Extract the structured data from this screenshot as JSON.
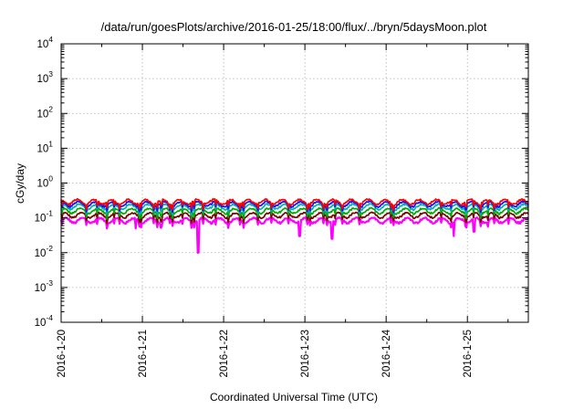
{
  "chart_data": {
    "type": "line",
    "title": "/data/run/goesPlots/archive/2016-01-25/18:00/flux/../bryn/5daysMoon.plot",
    "xlabel": "Coordinated Universal Time (UTC)",
    "ylabel": "cGy/day",
    "xlim": [
      "2016-01-20T00:00",
      "2016-01-25T18:00"
    ],
    "x_ticks": [
      "2016-1-20",
      "2016-1-21",
      "2016-1-22",
      "2016-1-23",
      "2016-1-24",
      "2016-1-25"
    ],
    "ylim": [
      0.0001,
      10000
    ],
    "yscale": "log",
    "y_ticks": [
      {
        "base": "10",
        "exp": "-4"
      },
      {
        "base": "10",
        "exp": "-3"
      },
      {
        "base": "10",
        "exp": "-2"
      },
      {
        "base": "10",
        "exp": "-1"
      },
      {
        "base": "10",
        "exp": "0"
      },
      {
        "base": "10",
        "exp": "1"
      },
      {
        "base": "10",
        "exp": "2"
      },
      {
        "base": "10",
        "exp": "3"
      },
      {
        "base": "10",
        "exp": "4"
      }
    ],
    "grid": true,
    "series": [
      {
        "color": "#ff00ff",
        "baseline": 0.085,
        "dips": [
          {
            "x": "2016-01-20T22:00",
            "y": 0.05
          },
          {
            "x": "2016-01-21T16:30",
            "y": 0.01
          },
          {
            "x": "2016-01-22T22:30",
            "y": 0.03
          },
          {
            "x": "2016-01-23T08:00",
            "y": 0.025
          },
          {
            "x": "2016-01-24T20:00",
            "y": 0.03
          },
          {
            "x": "2016-01-25T02:00",
            "y": 0.04
          }
        ]
      },
      {
        "color": "#7a0000",
        "baseline": 0.12
      },
      {
        "color": "#00aa00",
        "baseline": 0.16
      },
      {
        "color": "#00b0b0",
        "baseline": 0.21
      },
      {
        "color": "#1010ff",
        "baseline": 0.25
      },
      {
        "color": "#ff0000",
        "baseline": 0.29
      }
    ]
  }
}
